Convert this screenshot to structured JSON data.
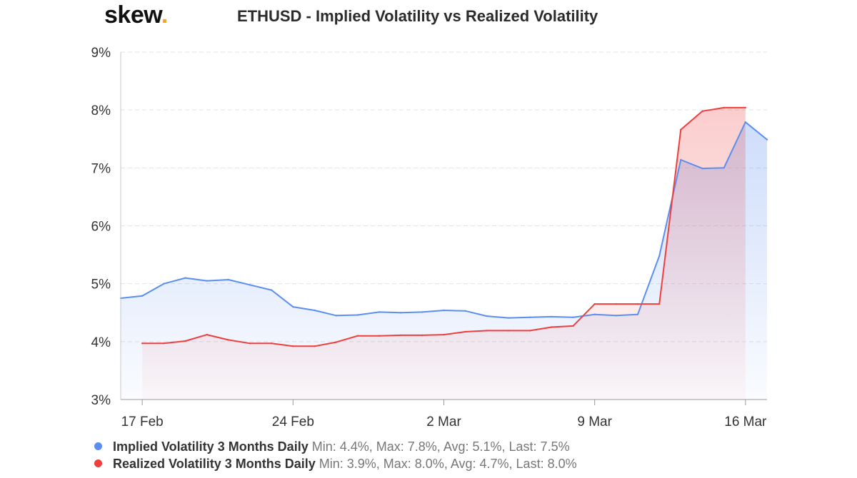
{
  "brand": {
    "name": "skew",
    "dot": "."
  },
  "colors": {
    "implied": "#5b8ef0",
    "realized": "#ee3f3f",
    "brand_dot": "#f5a623"
  },
  "chart_data": {
    "type": "area",
    "title": "ETHUSD - Implied Volatility vs Realized Volatility",
    "xlabel": "",
    "ylabel": "",
    "ylim": [
      3,
      9
    ],
    "y_ticks": [
      3,
      4,
      5,
      6,
      7,
      8,
      9
    ],
    "y_tick_labels": [
      "3%",
      "4%",
      "5%",
      "6%",
      "7%",
      "8%",
      "9%"
    ],
    "x_ticks": [
      "2020-02-17",
      "2020-02-24",
      "2020-03-02",
      "2020-03-09",
      "2020-03-16"
    ],
    "x_tick_labels": [
      "17 Feb",
      "24 Feb",
      "2 Mar",
      "9 Mar",
      "16 Mar"
    ],
    "grid": "horizontal dashed",
    "series": [
      {
        "name": "Implied Volatility 3 Months Daily",
        "stats": "Min: 4.4%, Max: 7.8%, Avg: 5.1%, Last: 7.5%",
        "points": [
          [
            "2020-02-16",
            4.75
          ],
          [
            "2020-02-17",
            4.79
          ],
          [
            "2020-02-18",
            5.0
          ],
          [
            "2020-02-19",
            5.1
          ],
          [
            "2020-02-20",
            5.05
          ],
          [
            "2020-02-21",
            5.07
          ],
          [
            "2020-02-22",
            4.98
          ],
          [
            "2020-02-23",
            4.89
          ],
          [
            "2020-02-24",
            4.6
          ],
          [
            "2020-02-25",
            4.54
          ],
          [
            "2020-02-26",
            4.45
          ],
          [
            "2020-02-27",
            4.46
          ],
          [
            "2020-02-28",
            4.51
          ],
          [
            "2020-02-29",
            4.5
          ],
          [
            "2020-03-01",
            4.51
          ],
          [
            "2020-03-02",
            4.54
          ],
          [
            "2020-03-03",
            4.53
          ],
          [
            "2020-03-04",
            4.44
          ],
          [
            "2020-03-05",
            4.41
          ],
          [
            "2020-03-06",
            4.42
          ],
          [
            "2020-03-07",
            4.43
          ],
          [
            "2020-03-08",
            4.42
          ],
          [
            "2020-03-09",
            4.47
          ],
          [
            "2020-03-10",
            4.45
          ],
          [
            "2020-03-11",
            4.47
          ],
          [
            "2020-03-12",
            5.48
          ],
          [
            "2020-03-13",
            7.14
          ],
          [
            "2020-03-14",
            6.99
          ],
          [
            "2020-03-15",
            7.0
          ],
          [
            "2020-03-16",
            7.79
          ],
          [
            "2020-03-17",
            7.49
          ]
        ]
      },
      {
        "name": "Realized Volatility 3 Months Daily",
        "stats": "Min: 3.9%, Max: 8.0%, Avg: 4.7%, Last: 8.0%",
        "points": [
          [
            "2020-02-17",
            3.97
          ],
          [
            "2020-02-18",
            3.97
          ],
          [
            "2020-02-19",
            4.01
          ],
          [
            "2020-02-20",
            4.12
          ],
          [
            "2020-02-21",
            4.03
          ],
          [
            "2020-02-22",
            3.97
          ],
          [
            "2020-02-23",
            3.97
          ],
          [
            "2020-02-24",
            3.92
          ],
          [
            "2020-02-25",
            3.92
          ],
          [
            "2020-02-26",
            3.99
          ],
          [
            "2020-02-27",
            4.1
          ],
          [
            "2020-02-28",
            4.1
          ],
          [
            "2020-02-29",
            4.11
          ],
          [
            "2020-03-01",
            4.11
          ],
          [
            "2020-03-02",
            4.12
          ],
          [
            "2020-03-03",
            4.17
          ],
          [
            "2020-03-04",
            4.19
          ],
          [
            "2020-03-05",
            4.19
          ],
          [
            "2020-03-06",
            4.19
          ],
          [
            "2020-03-07",
            4.25
          ],
          [
            "2020-03-08",
            4.27
          ],
          [
            "2020-03-09",
            4.65
          ],
          [
            "2020-03-10",
            4.65
          ],
          [
            "2020-03-11",
            4.65
          ],
          [
            "2020-03-12",
            4.65
          ],
          [
            "2020-03-13",
            7.66
          ],
          [
            "2020-03-14",
            7.98
          ],
          [
            "2020-03-15",
            8.04
          ],
          [
            "2020-03-16",
            8.04
          ]
        ]
      }
    ]
  }
}
